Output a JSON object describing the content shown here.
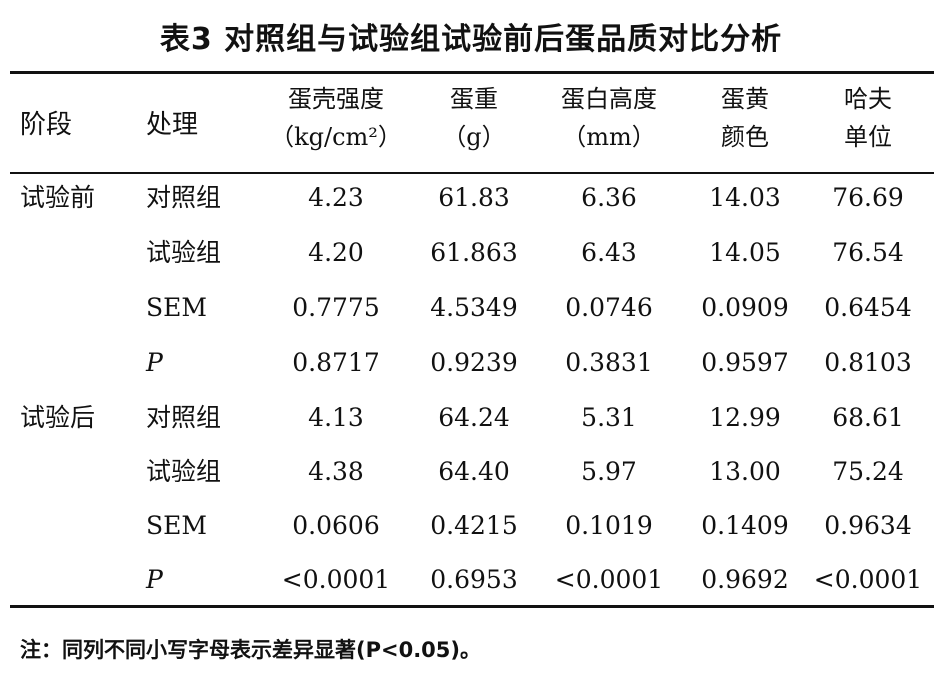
{
  "title": "表3 对照组与试验组试验前后蛋品质对比分析",
  "header": {
    "stage": "阶段",
    "treatment": "处理",
    "columns": [
      {
        "line1": "蛋壳强度",
        "line2": "（kg/cm²）"
      },
      {
        "line1": "蛋重",
        "line2": "（g）"
      },
      {
        "line1": "蛋白高度",
        "line2": "（mm）"
      },
      {
        "line1": "蛋黄",
        "line2": "颜色"
      },
      {
        "line1": "哈夫",
        "line2": "单位"
      }
    ]
  },
  "rows": [
    {
      "stage": "试验前",
      "treatment": "对照组",
      "values": [
        "4.23",
        "61.83",
        "6.36",
        "14.03",
        "76.69"
      ]
    },
    {
      "stage": "",
      "treatment": "试验组",
      "values": [
        "4.20",
        "61.863",
        "6.43",
        "14.05",
        "76.54"
      ]
    },
    {
      "stage": "",
      "treatment": "SEM",
      "values": [
        "0.7775",
        "4.5349",
        "0.0746",
        "0.0909",
        "0.6454"
      ]
    },
    {
      "stage": "",
      "treatment": "P",
      "values": [
        "0.8717",
        "0.9239",
        "0.3831",
        "0.9597",
        "0.8103"
      ]
    },
    {
      "stage": "试验后",
      "treatment": "对照组",
      "values": [
        "4.13",
        "64.24",
        "5.31",
        "12.99",
        "68.61"
      ]
    },
    {
      "stage": "",
      "treatment": "试验组",
      "values": [
        "4.38",
        "64.40",
        "5.97",
        "13.00",
        "75.24"
      ]
    },
    {
      "stage": "",
      "treatment": "SEM",
      "values": [
        "0.0606",
        "0.4215",
        "0.1019",
        "0.1409",
        "0.9634"
      ]
    },
    {
      "stage": "",
      "treatment": "P",
      "values": [
        "<0.0001",
        "0.6953",
        "<0.0001",
        "0.9692",
        "<0.0001"
      ]
    }
  ],
  "note": "注：同列不同小写字母表示差异显著(P<0.05)。"
}
